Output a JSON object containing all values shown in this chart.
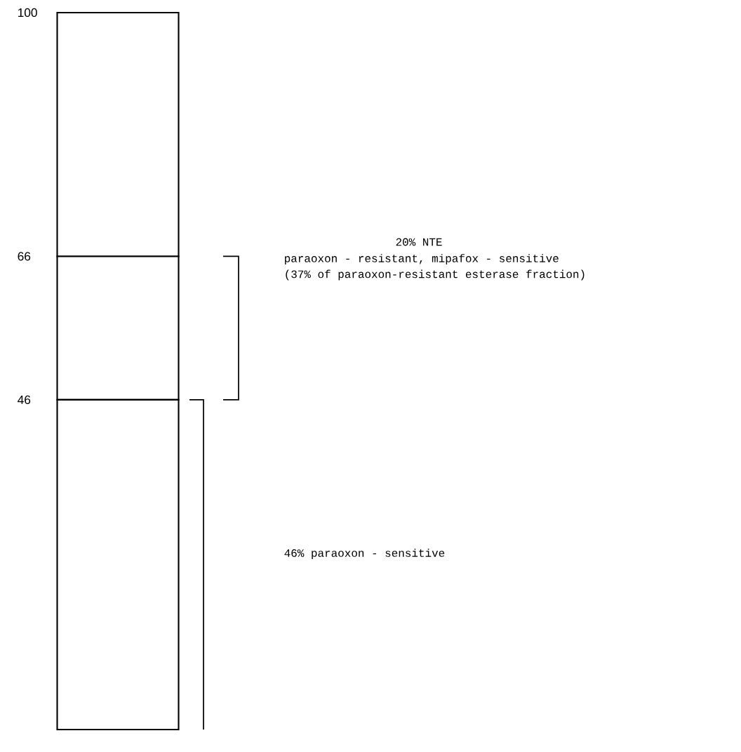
{
  "chart_data": {
    "type": "bar",
    "stacked": true,
    "categories": [
      null
    ],
    "series": [
      {
        "color": "#ffffff",
        "values": [
          46
        ]
      },
      {
        "color": "#ffffff",
        "values": [
          20
        ]
      },
      {
        "color": "#ffffff",
        "values": [
          34
        ]
      }
    ],
    "ylim": [
      0,
      100
    ],
    "yticks": [
      46,
      66,
      100
    ],
    "annotations": [
      "20% NTE",
      "paraoxon - resistant, mipafox - sensitive",
      "(37% of paraoxon-resistant esterase fraction)",
      "46% paraoxon - sensitive"
    ]
  }
}
